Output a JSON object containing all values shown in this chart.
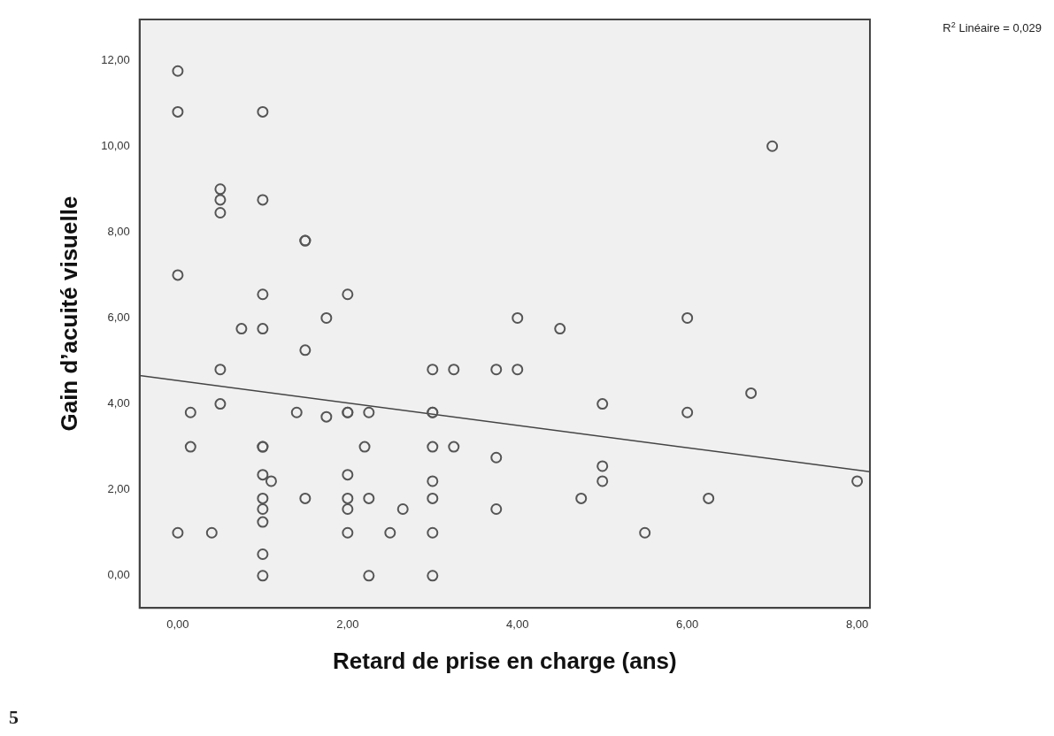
{
  "chart_data": {
    "type": "scatter",
    "xlabel": "Retard de prise en charge (ans)",
    "ylabel": "Gain d’acuité visuelle",
    "annotations": [
      "R$^{2}$ Linéaire = 0,029",
      "5"
    ],
    "xlim": [
      -0.45,
      8.15
    ],
    "ylim": [
      -0.75,
      12.95
    ],
    "xticks": [
      {
        "value": 0,
        "label": "0,00"
      },
      {
        "value": 2,
        "label": "2,00"
      },
      {
        "value": 4,
        "label": "4,00"
      },
      {
        "value": 6,
        "label": "6,00"
      },
      {
        "value": 8,
        "label": "8,00"
      }
    ],
    "yticks": [
      {
        "value": 0,
        "label": "0,00"
      },
      {
        "value": 2,
        "label": "2,00"
      },
      {
        "value": 4,
        "label": "4,00"
      },
      {
        "value": 6,
        "label": "6,00"
      },
      {
        "value": 8,
        "label": "8,00"
      },
      {
        "value": 10,
        "label": "10,00"
      },
      {
        "value": 12,
        "label": "12,00"
      }
    ],
    "grid": false,
    "legend": false,
    "marker": "circle",
    "series": [
      {
        "type": "scatter",
        "color": "#555555",
        "x": [
          0,
          0,
          0,
          0,
          0.5,
          0.5,
          0.5,
          0.5,
          0.5,
          1,
          1,
          1,
          1,
          1,
          1,
          1,
          1,
          1,
          1,
          1,
          1,
          1.1,
          1.5,
          1.5,
          1.5,
          1.5,
          1.75,
          1.75,
          0.75,
          0.15,
          0.15,
          0.4,
          1.4,
          2,
          2,
          2,
          2,
          2,
          2,
          2,
          2.2,
          2.25,
          2.25,
          2.25,
          2.5,
          2.65,
          3,
          3,
          3,
          3,
          3,
          3,
          3,
          3,
          3.25,
          3.25,
          3.75,
          3.75,
          3.75,
          4,
          4,
          4.5,
          4.75,
          5,
          5,
          5,
          5.5,
          6,
          6,
          6.25,
          6.75,
          7,
          8
        ],
        "values": [
          11.75,
          10.8,
          7.0,
          1.0,
          9.0,
          8.75,
          8.45,
          4.8,
          4.0,
          10.8,
          8.75,
          6.55,
          5.75,
          3.0,
          3.0,
          2.35,
          1.8,
          1.55,
          1.25,
          0.5,
          0.0,
          2.2,
          7.8,
          7.8,
          5.25,
          1.8,
          6.0,
          3.7,
          5.75,
          3.8,
          3.0,
          1.0,
          3.8,
          6.55,
          3.8,
          3.8,
          2.35,
          1.8,
          1.55,
          1.0,
          3.0,
          3.8,
          1.8,
          0.0,
          1.0,
          1.55,
          4.8,
          3.8,
          3.8,
          3.0,
          2.2,
          1.8,
          1.0,
          0.0,
          4.8,
          3.0,
          4.8,
          2.75,
          1.55,
          6.0,
          4.8,
          5.75,
          1.8,
          4.0,
          2.55,
          2.2,
          1.0,
          6.0,
          3.8,
          1.8,
          4.25,
          10.0,
          2.2
        ]
      },
      {
        "type": "line",
        "color": "#444444",
        "x": [
          -0.45,
          8.15
        ],
        "values": [
          4.66,
          2.42
        ],
        "marker": "none"
      }
    ]
  }
}
